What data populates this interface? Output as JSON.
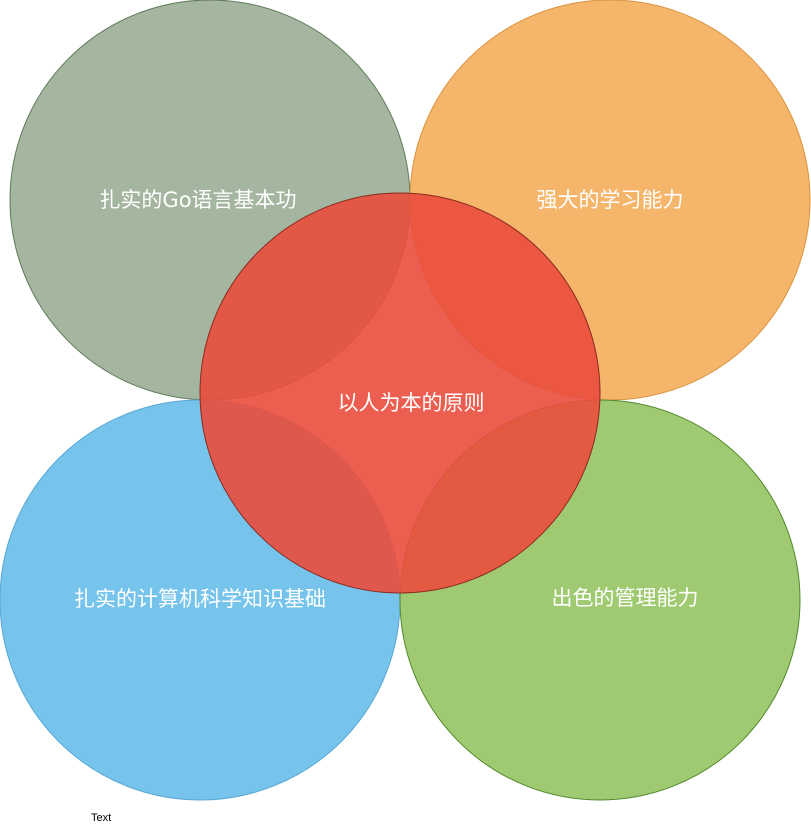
{
  "diagram": {
    "circles": {
      "top_left": {
        "label": "扎实的Go语言基本功",
        "fill": "#a4b69f",
        "stroke": "#5e7a5a"
      },
      "top_right": {
        "label": "强大的学习能力",
        "fill": "#f5b56a",
        "stroke": "#d9943f"
      },
      "bottom_left": {
        "label": "扎实的计算机科学知识基础",
        "fill": "#76c4ec",
        "stroke": "#5aa8d4"
      },
      "bottom_right": {
        "label": "出色的管理能力",
        "fill": "#a0ca72",
        "stroke": "#4f8a2a"
      },
      "center": {
        "label": "以人为本的原则",
        "fill": "#ea4c3c",
        "stroke": "#8a2a20"
      }
    },
    "footer_text": "Text"
  }
}
